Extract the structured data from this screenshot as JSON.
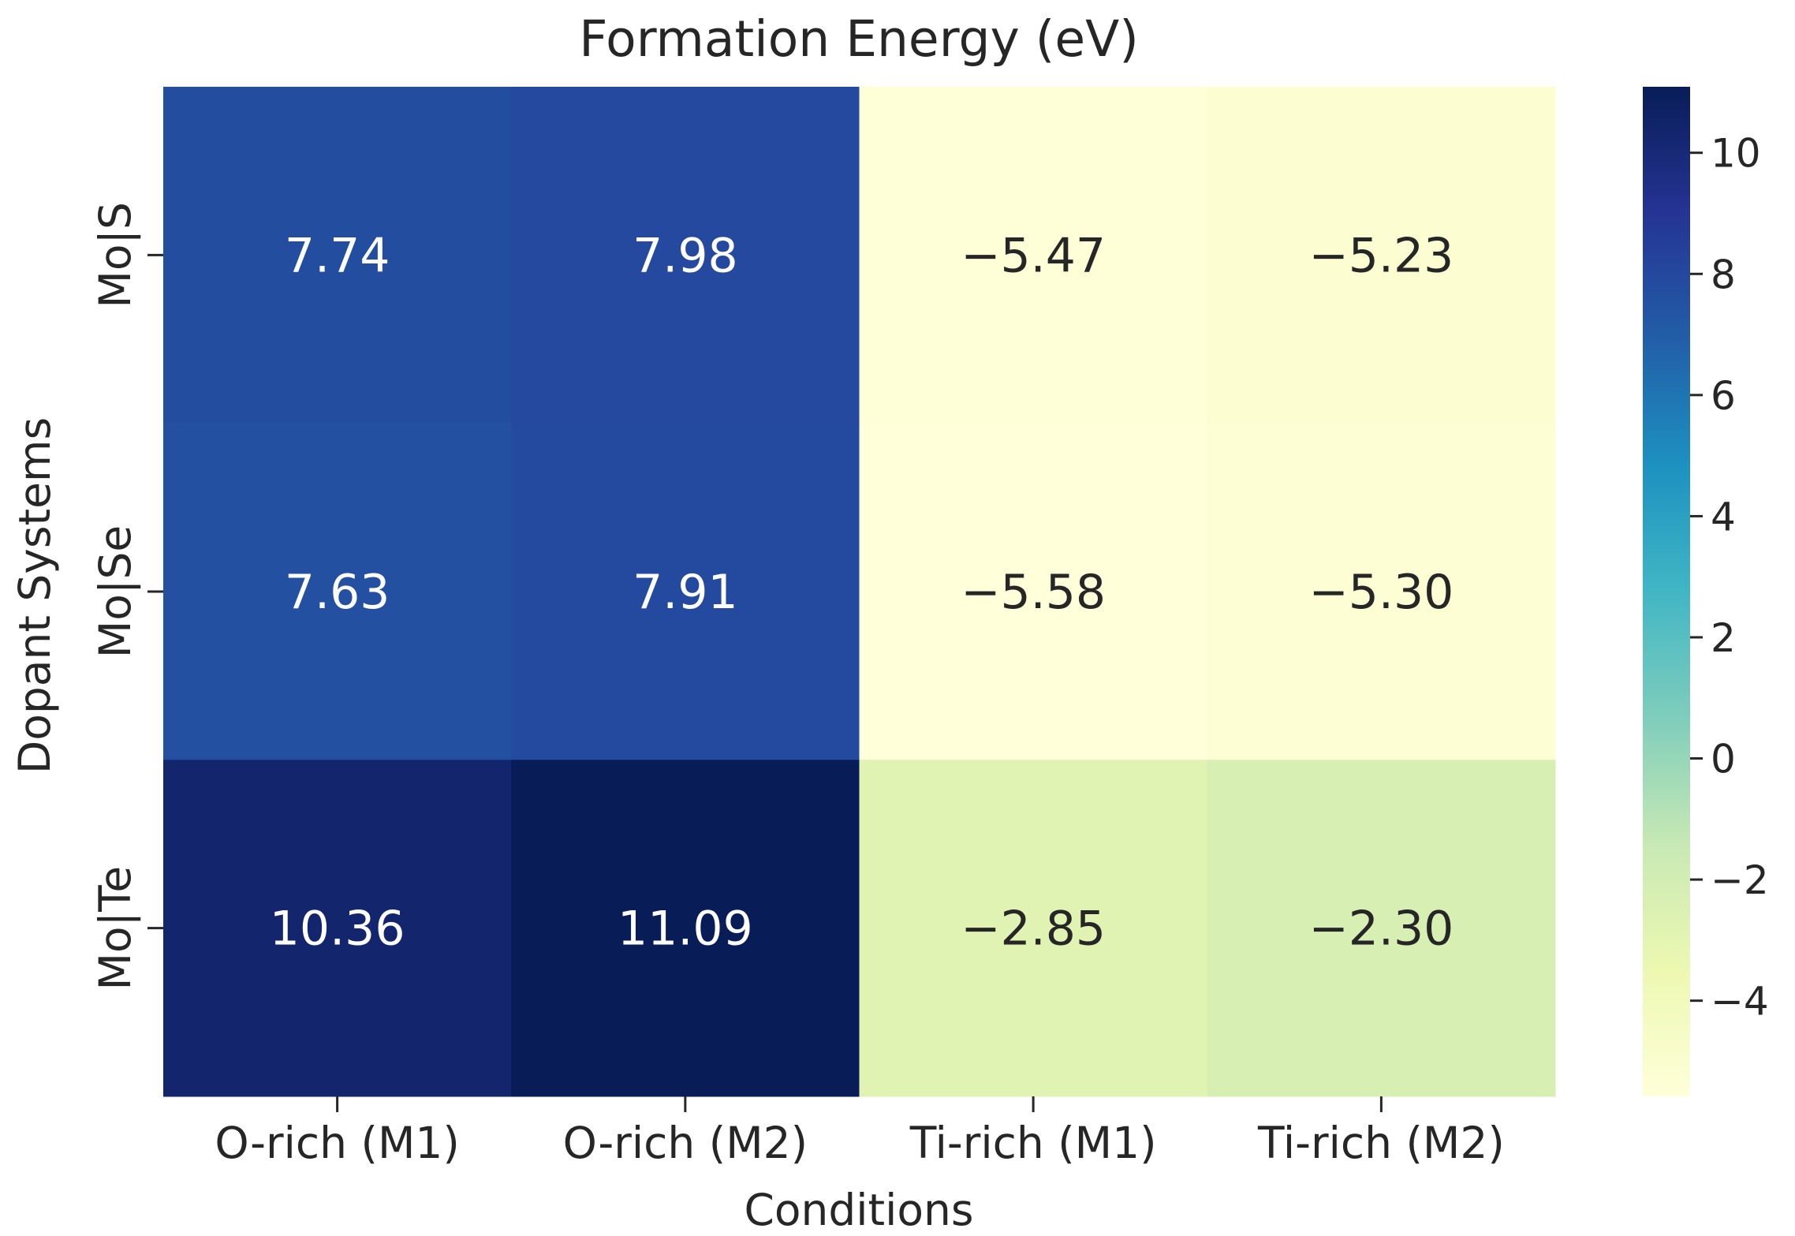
{
  "chart_data": {
    "type": "heatmap",
    "title": "Formation Energy (eV)",
    "xlabel": "Conditions",
    "ylabel": "Dopant Systems",
    "x_categories": [
      "O-rich (M1)",
      "O-rich (M2)",
      "Ti-rich (M1)",
      "Ti-rich (M2)"
    ],
    "y_categories": [
      "Mo|S",
      "Mo|Se",
      "Mo|Te"
    ],
    "values": [
      [
        7.74,
        7.98,
        -5.47,
        -5.23
      ],
      [
        7.63,
        7.91,
        -5.58,
        -5.3
      ],
      [
        10.36,
        11.09,
        -2.85,
        -2.3
      ]
    ],
    "cell_labels": [
      [
        "7.74",
        "7.98",
        "−5.47",
        "−5.23"
      ],
      [
        "7.63",
        "7.91",
        "−5.58",
        "−5.30"
      ],
      [
        "10.36",
        "11.09",
        "−2.85",
        "−2.30"
      ]
    ],
    "colormap": "YlGnBu",
    "colorbar": {
      "vmin": -5.58,
      "vmax": 11.09,
      "ticks": [
        -4,
        -2,
        0,
        2,
        4,
        6,
        8,
        10
      ],
      "tick_labels": [
        "−4",
        "−2",
        "0",
        "2",
        "4",
        "6",
        "8",
        "10"
      ]
    }
  },
  "colors": {
    "text_dark": "#262626",
    "text_light": "#ffffff",
    "colormap_stops": [
      "#ffffd9",
      "#edf8b1",
      "#c7e9b4",
      "#7fcdbb",
      "#41b6c4",
      "#1d91c0",
      "#225ea8",
      "#253494",
      "#081d58"
    ]
  }
}
